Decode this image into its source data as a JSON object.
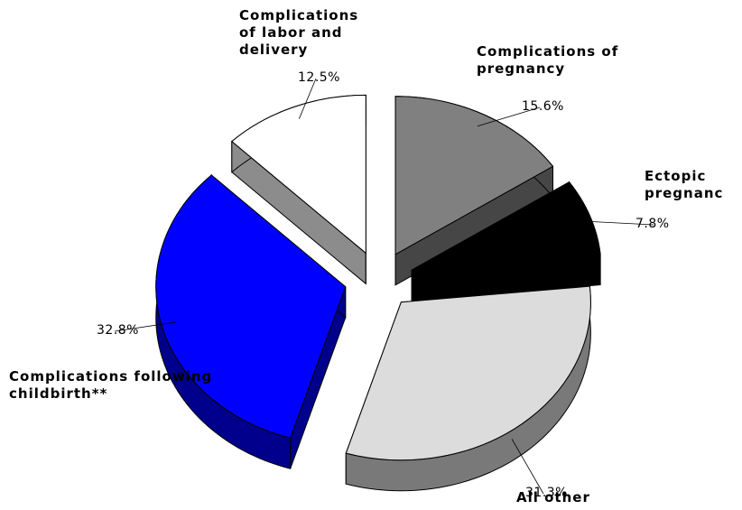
{
  "chart_data": {
    "type": "pie",
    "categories": [
      "Complications of pregnancy",
      "Ectopic pregnanc",
      "All other",
      "Complications following childbirth**",
      "Complications of labor and delivery"
    ],
    "values": [
      15.6,
      7.8,
      31.3,
      32.8,
      12.5
    ],
    "value_labels": [
      "15.6%",
      "7.8%",
      "31.3%",
      "32.8%",
      "12.5%"
    ],
    "colors": [
      "#808080",
      "#000000",
      "#dcdcdc",
      "#0000ff",
      "#ffffff"
    ]
  }
}
